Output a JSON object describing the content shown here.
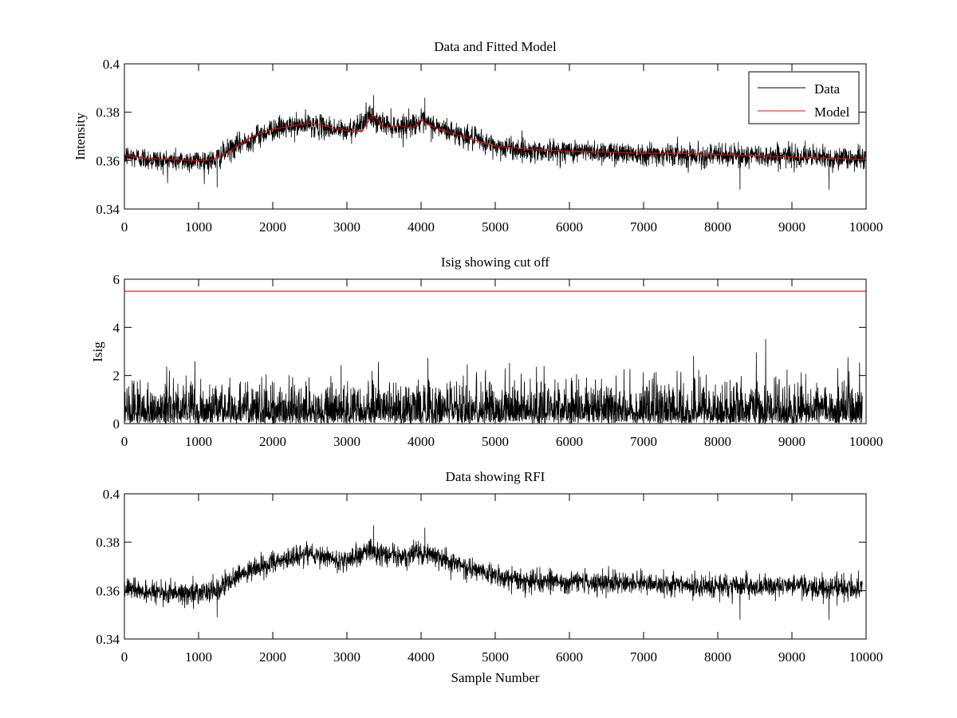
{
  "chart_data": [
    {
      "type": "line",
      "title": "Data and Fitted Model",
      "xlabel": "",
      "ylabel": "Intensity",
      "xlim": [
        0,
        10000
      ],
      "ylim": [
        0.34,
        0.4
      ],
      "xticks": [
        0,
        1000,
        2000,
        3000,
        4000,
        5000,
        6000,
        7000,
        8000,
        9000,
        10000
      ],
      "xtick_labels": [
        "0",
        "1000",
        "2000",
        "3000",
        "4000",
        "5000",
        "6000",
        "7000",
        "8000",
        "9000",
        "10000"
      ],
      "yticks": [
        0.34,
        0.36,
        0.38,
        0.4
      ],
      "ytick_labels": [
        "0.34",
        "0.36",
        "0.38",
        "0.4"
      ],
      "grid": false,
      "legend": {
        "placement": "top-right",
        "entries": [
          {
            "label": "Data",
            "color": "#000000"
          },
          {
            "label": "Model",
            "color": "#ff0000"
          }
        ]
      },
      "series": [
        {
          "name": "Data",
          "color": "#000000",
          "style": "noisy",
          "x_end": 10000,
          "noise_amplitude": 0.0055,
          "spikes": [
            {
              "x": 3360,
              "value": 0.387
            },
            {
              "x": 4050,
              "value": 0.386
            },
            {
              "x": 1250,
              "value": 0.349
            },
            {
              "x": 8300,
              "value": 0.348
            },
            {
              "x": 9500,
              "value": 0.348
            }
          ],
          "baseline": {
            "x": [
              0,
              500,
              1000,
              1200,
              1500,
              2000,
              2500,
              3000,
              3300,
              3400,
              3700,
              4000,
              4500,
              5000,
              5500,
              6000,
              7000,
              8000,
              9000,
              9500,
              10000
            ],
            "y": [
              0.362,
              0.36,
              0.36,
              0.36,
              0.366,
              0.373,
              0.375,
              0.372,
              0.378,
              0.376,
              0.374,
              0.376,
              0.371,
              0.366,
              0.364,
              0.364,
              0.363,
              0.362,
              0.362,
              0.361,
              0.361
            ]
          }
        },
        {
          "name": "Model",
          "color": "#ff0000",
          "x": [
            0,
            300,
            600,
            1000,
            1200,
            1400,
            1700,
            2000,
            2300,
            2500,
            2700,
            2800,
            3000,
            3200,
            3350,
            3400,
            3500,
            3700,
            3900,
            4000,
            4050,
            4200,
            4500,
            5000,
            5500,
            6000,
            7000,
            7500,
            8000,
            8500,
            9000,
            9500,
            10000
          ],
          "values": [
            0.3623,
            0.361,
            0.3605,
            0.36,
            0.3605,
            0.3635,
            0.3695,
            0.373,
            0.3745,
            0.3755,
            0.3745,
            0.3735,
            0.3725,
            0.372,
            0.379,
            0.3775,
            0.3735,
            0.3745,
            0.3735,
            0.377,
            0.3755,
            0.3735,
            0.3705,
            0.366,
            0.3645,
            0.364,
            0.363,
            0.363,
            0.3625,
            0.362,
            0.3615,
            0.361,
            0.3605
          ]
        }
      ]
    },
    {
      "type": "line",
      "title": "Isig showing cut off",
      "xlabel": "",
      "ylabel": "Isig",
      "xlim": [
        0,
        10000
      ],
      "ylim": [
        0,
        6
      ],
      "xticks": [
        0,
        1000,
        2000,
        3000,
        4000,
        5000,
        6000,
        7000,
        8000,
        9000,
        10000
      ],
      "xtick_labels": [
        "0",
        "1000",
        "2000",
        "3000",
        "4000",
        "5000",
        "6000",
        "7000",
        "8000",
        "9000",
        "10000"
      ],
      "yticks": [
        0,
        2,
        4,
        6
      ],
      "ytick_labels": [
        "0",
        "2",
        "4",
        "6"
      ],
      "grid": false,
      "series": [
        {
          "color": "#000000",
          "style": "abs-noise",
          "x_end": 9950,
          "scale": 0.8,
          "max": 3.6
        },
        {
          "color": "#ff0000",
          "x": [
            0,
            10000
          ],
          "values": [
            5.5,
            5.5
          ]
        }
      ]
    },
    {
      "type": "line",
      "title": "Data showing RFI",
      "xlabel": "Sample Number",
      "ylabel": "",
      "xlim": [
        0,
        10000
      ],
      "ylim": [
        0.34,
        0.4
      ],
      "xticks": [
        0,
        1000,
        2000,
        3000,
        4000,
        5000,
        6000,
        7000,
        8000,
        9000,
        10000
      ],
      "xtick_labels": [
        "0",
        "1000",
        "2000",
        "3000",
        "4000",
        "5000",
        "6000",
        "7000",
        "8000",
        "9000",
        "10000"
      ],
      "yticks": [
        0.34,
        0.36,
        0.38,
        0.4
      ],
      "ytick_labels": [
        "0.34",
        "0.36",
        "0.38",
        "0.4"
      ],
      "grid": false,
      "series": [
        {
          "color": "#000000",
          "style": "noisy",
          "x_end": 9950,
          "noise_amplitude": 0.0055,
          "spikes": [
            {
              "x": 3360,
              "value": 0.387
            },
            {
              "x": 4050,
              "value": 0.386
            },
            {
              "x": 1250,
              "value": 0.349
            },
            {
              "x": 8300,
              "value": 0.348
            },
            {
              "x": 9500,
              "value": 0.348
            }
          ],
          "baseline": {
            "x": [
              0,
              500,
              1000,
              1200,
              1500,
              2000,
              2500,
              3000,
              3300,
              3400,
              3700,
              4000,
              4500,
              5000,
              5500,
              6000,
              7000,
              8000,
              9000,
              9500,
              10000
            ],
            "y": [
              0.361,
              0.359,
              0.359,
              0.359,
              0.365,
              0.372,
              0.375,
              0.372,
              0.377,
              0.375,
              0.374,
              0.376,
              0.371,
              0.366,
              0.364,
              0.364,
              0.363,
              0.362,
              0.362,
              0.361,
              0.361
            ]
          }
        }
      ]
    }
  ]
}
